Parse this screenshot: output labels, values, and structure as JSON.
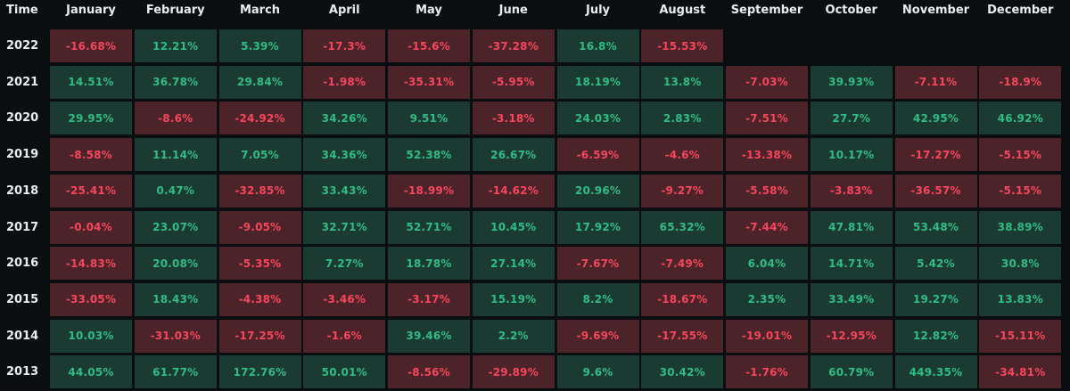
{
  "chart_data": {
    "type": "table",
    "corner_label": "Time",
    "months": [
      "January",
      "February",
      "March",
      "April",
      "May",
      "June",
      "July",
      "August",
      "September",
      "October",
      "November",
      "December"
    ],
    "rows": [
      {
        "year": "2022",
        "values": [
          "-16.68%",
          "12.21%",
          "5.39%",
          "-17.3%",
          "-15.6%",
          "-37.28%",
          "16.8%",
          "-15.53%",
          null,
          null,
          null,
          null
        ]
      },
      {
        "year": "2021",
        "values": [
          "14.51%",
          "36.78%",
          "29.84%",
          "-1.98%",
          "-35.31%",
          "-5.95%",
          "18.19%",
          "13.8%",
          "-7.03%",
          "39.93%",
          "-7.11%",
          "-18.9%"
        ]
      },
      {
        "year": "2020",
        "values": [
          "29.95%",
          "-8.6%",
          "-24.92%",
          "34.26%",
          "9.51%",
          "-3.18%",
          "24.03%",
          "2.83%",
          "-7.51%",
          "27.7%",
          "42.95%",
          "46.92%"
        ]
      },
      {
        "year": "2019",
        "values": [
          "-8.58%",
          "11.14%",
          "7.05%",
          "34.36%",
          "52.38%",
          "26.67%",
          "-6.59%",
          "-4.6%",
          "-13.38%",
          "10.17%",
          "-17.27%",
          "-5.15%"
        ]
      },
      {
        "year": "2018",
        "values": [
          "-25.41%",
          "0.47%",
          "-32.85%",
          "33.43%",
          "-18.99%",
          "-14.62%",
          "20.96%",
          "-9.27%",
          "-5.58%",
          "-3.83%",
          "-36.57%",
          "-5.15%"
        ]
      },
      {
        "year": "2017",
        "values": [
          "-0.04%",
          "23.07%",
          "-9.05%",
          "32.71%",
          "52.71%",
          "10.45%",
          "17.92%",
          "65.32%",
          "-7.44%",
          "47.81%",
          "53.48%",
          "38.89%"
        ]
      },
      {
        "year": "2016",
        "values": [
          "-14.83%",
          "20.08%",
          "-5.35%",
          "7.27%",
          "18.78%",
          "27.14%",
          "-7.67%",
          "-7.49%",
          "6.04%",
          "14.71%",
          "5.42%",
          "30.8%"
        ]
      },
      {
        "year": "2015",
        "values": [
          "-33.05%",
          "18.43%",
          "-4.38%",
          "-3.46%",
          "-3.17%",
          "15.19%",
          "8.2%",
          "-18.67%",
          "2.35%",
          "33.49%",
          "19.27%",
          "13.83%"
        ]
      },
      {
        "year": "2014",
        "values": [
          "10.03%",
          "-31.03%",
          "-17.25%",
          "-1.6%",
          "39.46%",
          "2.2%",
          "-9.69%",
          "-17.55%",
          "-19.01%",
          "-12.95%",
          "12.82%",
          "-15.11%"
        ]
      },
      {
        "year": "2013",
        "values": [
          "44.05%",
          "61.77%",
          "172.76%",
          "50.01%",
          "-8.56%",
          "-29.89%",
          "9.6%",
          "30.42%",
          "-1.76%",
          "60.79%",
          "449.35%",
          "-34.81%"
        ]
      }
    ],
    "colors": {
      "positive_bg": "#1b3a31",
      "positive_text": "#2ebd85",
      "negative_bg": "#4b2328",
      "negative_text": "#f6465d",
      "header_text": "#eaecef",
      "background": "#0b0e11"
    }
  }
}
